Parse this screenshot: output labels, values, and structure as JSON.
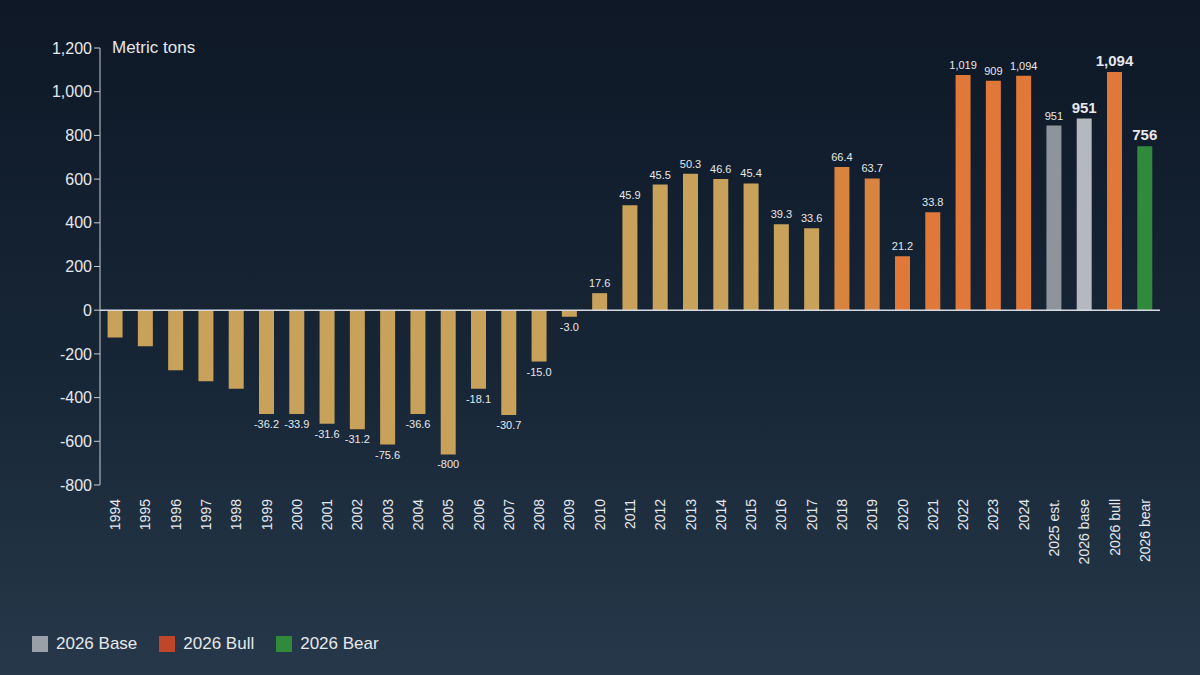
{
  "chart_data": {
    "type": "bar",
    "y_label": "Metric tons",
    "categories": [
      "1994",
      "1995",
      "1996",
      "1997",
      "1998",
      "1999",
      "2000",
      "2001",
      "2002",
      "2003",
      "2004",
      "2005",
      "2006",
      "2007",
      "2008",
      "2009",
      "2010",
      "2011",
      "2012",
      "2013",
      "2014",
      "2015",
      "2016",
      "2017",
      "2018",
      "2019",
      "2020",
      "2021",
      "2022",
      "2023",
      "2024",
      "2025 est.",
      "2026 base",
      "2026 bull",
      "2026 bear"
    ],
    "values": [
      -125,
      -165,
      -275,
      -325,
      -360,
      -475,
      -475,
      -520,
      -545,
      -615,
      -475,
      -660,
      -360,
      -480,
      -235,
      -30,
      78,
      480,
      575,
      625,
      600,
      580,
      393,
      375,
      655,
      603,
      247,
      448,
      1077,
      1050,
      1073,
      845,
      877,
      1090,
      750
    ],
    "colors": [
      "#c8a25a",
      "#c8a25a",
      "#c8a25a",
      "#c8a25a",
      "#c8a25a",
      "#c8a25a",
      "#c8a25a",
      "#c8a25a",
      "#c8a25a",
      "#c8a25a",
      "#c8a25a",
      "#c8a25a",
      "#c8a25a",
      "#c8a25a",
      "#c8a25a",
      "#c8a25a",
      "#c8a25a",
      "#c8a25a",
      "#c8a25a",
      "#c8a25a",
      "#c8a25a",
      "#c8a25a",
      "#c8a25a",
      "#c8a25a",
      "#d6843f",
      "#d6843f",
      "#e0783a",
      "#e0783a",
      "#e0783a",
      "#e0783a",
      "#e0783a",
      "#8e949c",
      "#b4b8c0",
      "#e0783a",
      "#2f8a3c"
    ],
    "annotations": [
      {
        "category": "1999",
        "text": "-36.2"
      },
      {
        "category": "2000",
        "text": "-33.9"
      },
      {
        "category": "2001",
        "text": "-31.6"
      },
      {
        "category": "2002",
        "text": "-31.2"
      },
      {
        "category": "2003",
        "text": "-75.6"
      },
      {
        "category": "2004",
        "text": "-36.6"
      },
      {
        "category": "2005",
        "text": "-800"
      },
      {
        "category": "2006",
        "text": "-18.1"
      },
      {
        "category": "2007",
        "text": "-30.7"
      },
      {
        "category": "2008",
        "text": "-15.0"
      },
      {
        "category": "2009",
        "text": "-3.0"
      },
      {
        "category": "2010",
        "text": "17.6"
      },
      {
        "category": "2011",
        "text": "45.9"
      },
      {
        "category": "2012",
        "text": "45.5"
      },
      {
        "category": "2013",
        "text": "50.3"
      },
      {
        "category": "2014",
        "text": "46.6"
      },
      {
        "category": "2015",
        "text": "45.4"
      },
      {
        "category": "2016",
        "text": "39.3"
      },
      {
        "category": "2017",
        "text": "33.6"
      },
      {
        "category": "2018",
        "text": "66.4"
      },
      {
        "category": "2019",
        "text": "63.7"
      },
      {
        "category": "2020",
        "text": "21.2"
      },
      {
        "category": "2021",
        "text": "33.8"
      },
      {
        "category": "2022",
        "text": "1,019"
      },
      {
        "category": "2023",
        "text": "909"
      },
      {
        "category": "2024",
        "text": "1,094"
      },
      {
        "category": "2025 est.",
        "text": "951"
      },
      {
        "category": "2026 base",
        "text": "951"
      },
      {
        "category": "2026 bull",
        "text": "1,094"
      },
      {
        "category": "2026 bear",
        "text": "756"
      }
    ],
    "ylim": [
      -800,
      1200
    ],
    "yticks": [
      -800,
      -600,
      -400,
      -200,
      0,
      200,
      400,
      600,
      800,
      {
        "value": 1000,
        "label": "1,000"
      },
      {
        "value": 1200,
        "label": "1,200"
      }
    ],
    "grid": false,
    "legend": "lower left",
    "legend_entries": [
      {
        "label": "2026 Base",
        "color": "#9aa0a8"
      },
      {
        "label": "2026 Bull",
        "color": "#c0462a"
      },
      {
        "label": "2026 Bear",
        "color": "#2f8a3c"
      }
    ]
  }
}
